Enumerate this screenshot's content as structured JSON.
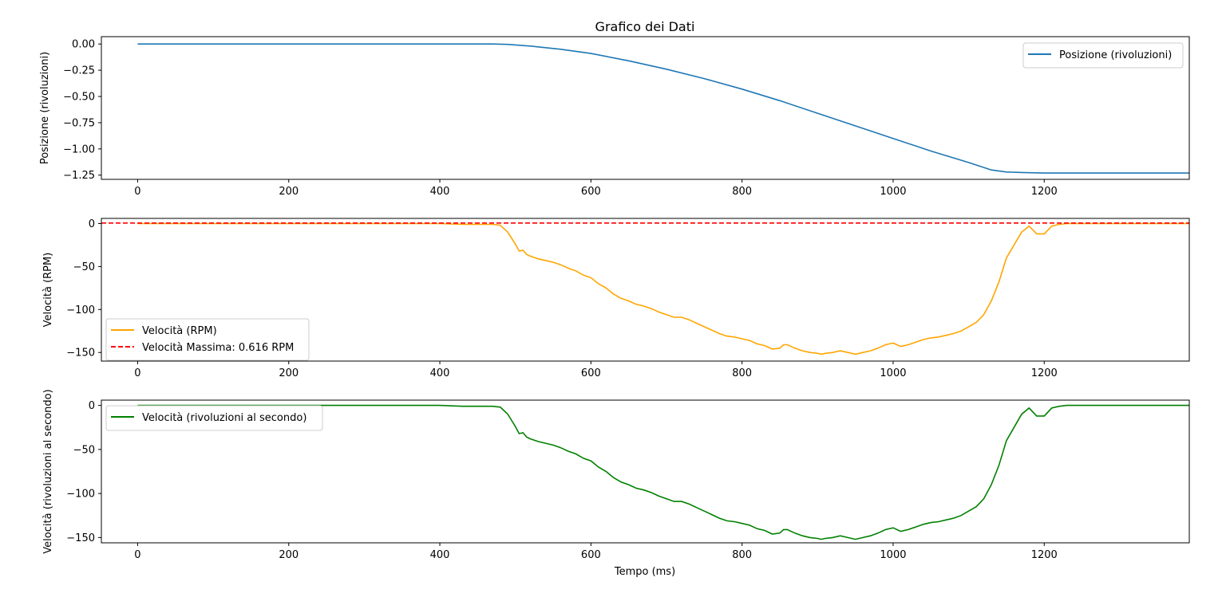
{
  "figure": {
    "title": "Grafico dei Dati",
    "xlabel": "Tempo (ms)"
  },
  "chart_data": [
    {
      "type": "line",
      "title": "Grafico dei Dati",
      "xlabel": "",
      "ylabel": "Posizione (rivoluzioni)",
      "xlim": [
        -48,
        1392
      ],
      "ylim": [
        -1.29,
        0.07
      ],
      "xticks": [
        0,
        200,
        400,
        600,
        800,
        1000,
        1200
      ],
      "yticks": [
        0.0,
        -0.25,
        -0.5,
        -0.75,
        -1.0,
        -1.25
      ],
      "ytick_labels": [
        "0.00",
        "−0.25",
        "−0.50",
        "−0.75",
        "−1.00",
        "−1.25"
      ],
      "grid": false,
      "legend": "top-right",
      "series": [
        {
          "name": "Posizione (rivoluzioni)",
          "color": "#1f77b4",
          "style": "solid",
          "x": [
            0,
            100,
            200,
            300,
            400,
            470,
            490,
            520,
            560,
            600,
            650,
            700,
            750,
            800,
            850,
            900,
            950,
            1000,
            1050,
            1100,
            1130,
            1150,
            1170,
            1200,
            1250,
            1300,
            1392
          ],
          "y": [
            0.0,
            0.0,
            0.0,
            0.0,
            0.0,
            0.0,
            -0.004,
            -0.02,
            -0.05,
            -0.09,
            -0.16,
            -0.24,
            -0.33,
            -0.43,
            -0.54,
            -0.66,
            -0.78,
            -0.9,
            -1.02,
            -1.13,
            -1.2,
            -1.22,
            -1.225,
            -1.23,
            -1.23,
            -1.23,
            -1.23
          ]
        }
      ]
    },
    {
      "type": "line",
      "xlabel": "",
      "ylabel": "Velocità (RPM)",
      "xlim": [
        -48,
        1392
      ],
      "ylim": [
        -160,
        6
      ],
      "xticks": [
        0,
        200,
        400,
        600,
        800,
        1000,
        1200
      ],
      "yticks": [
        0,
        -50,
        -100,
        -150
      ],
      "ytick_labels": [
        "0",
        "−50",
        "−100",
        "−150"
      ],
      "grid": false,
      "legend": "lower-left",
      "series": [
        {
          "name": "Velocità (RPM)",
          "color": "#ffa500",
          "style": "solid",
          "x": [
            0,
            100,
            200,
            300,
            400,
            430,
            450,
            470,
            480,
            490,
            500,
            505,
            510,
            515,
            520,
            530,
            540,
            550,
            560,
            570,
            580,
            590,
            600,
            610,
            620,
            630,
            640,
            650,
            660,
            670,
            680,
            690,
            700,
            710,
            720,
            730,
            740,
            750,
            760,
            770,
            780,
            790,
            800,
            810,
            820,
            830,
            840,
            850,
            855,
            860,
            870,
            880,
            890,
            900,
            905,
            910,
            920,
            930,
            940,
            950,
            960,
            970,
            980,
            990,
            1000,
            1010,
            1020,
            1030,
            1040,
            1050,
            1060,
            1070,
            1080,
            1090,
            1100,
            1110,
            1120,
            1130,
            1140,
            1150,
            1160,
            1170,
            1180,
            1190,
            1200,
            1210,
            1220,
            1230,
            1240,
            1260,
            1300,
            1392
          ],
          "y": [
            0,
            0,
            0,
            0,
            0,
            -1,
            -1,
            -1,
            -2,
            -10,
            -24,
            -32,
            -31,
            -36,
            -38,
            -41,
            -43,
            -45,
            -48,
            -52,
            -55,
            -60,
            -63,
            -70,
            -75,
            -82,
            -87,
            -90,
            -94,
            -96,
            -99,
            -103,
            -106,
            -109,
            -109,
            -112,
            -116,
            -120,
            -124,
            -128,
            -131,
            -132,
            -134,
            -136,
            -140,
            -142,
            -146,
            -145,
            -141,
            -141,
            -145,
            -148,
            -150,
            -151,
            -152,
            -151,
            -150,
            -148,
            -150,
            -152,
            -150,
            -148,
            -145,
            -141,
            -139,
            -143,
            -141,
            -138,
            -135,
            -133,
            -132,
            -130,
            -128,
            -125,
            -120,
            -115,
            -106,
            -90,
            -68,
            -40,
            -25,
            -10,
            -3,
            -12,
            -12,
            -3,
            -1,
            0,
            0,
            0,
            0,
            0
          ]
        },
        {
          "name": "Velocità Massima: 0.616 RPM",
          "color": "#ff0000",
          "style": "dashed",
          "x": [
            -48,
            1392
          ],
          "y": [
            0.616,
            0.616
          ]
        }
      ]
    },
    {
      "type": "line",
      "xlabel": "Tempo (ms)",
      "ylabel": "Velocità (rivoluzioni al secondo)",
      "xlim": [
        -48,
        1392
      ],
      "ylim": [
        -156,
        6
      ],
      "xticks": [
        0,
        200,
        400,
        600,
        800,
        1000,
        1200
      ],
      "yticks": [
        0,
        -50,
        -100,
        -150
      ],
      "ytick_labels": [
        "0",
        "−50",
        "−100",
        "−150"
      ],
      "grid": false,
      "legend": "top-left",
      "series": [
        {
          "name": "Velocità (rivoluzioni al secondo)",
          "color": "#008000",
          "style": "solid",
          "x": [
            0,
            100,
            200,
            300,
            400,
            430,
            450,
            470,
            480,
            490,
            500,
            505,
            510,
            515,
            520,
            530,
            540,
            550,
            560,
            570,
            580,
            590,
            600,
            610,
            620,
            630,
            640,
            650,
            660,
            670,
            680,
            690,
            700,
            710,
            720,
            730,
            740,
            750,
            760,
            770,
            780,
            790,
            800,
            810,
            820,
            830,
            840,
            850,
            855,
            860,
            870,
            880,
            890,
            900,
            905,
            910,
            920,
            930,
            940,
            950,
            960,
            970,
            980,
            990,
            1000,
            1010,
            1020,
            1030,
            1040,
            1050,
            1060,
            1070,
            1080,
            1090,
            1100,
            1110,
            1120,
            1130,
            1140,
            1150,
            1160,
            1170,
            1180,
            1190,
            1200,
            1210,
            1220,
            1230,
            1240,
            1260,
            1300,
            1392
          ],
          "y": [
            0,
            0,
            0,
            0,
            0,
            -1,
            -1,
            -1,
            -2,
            -10,
            -24,
            -32,
            -31,
            -36,
            -38,
            -41,
            -43,
            -45,
            -48,
            -52,
            -55,
            -60,
            -63,
            -70,
            -75,
            -82,
            -87,
            -90,
            -94,
            -96,
            -99,
            -103,
            -106,
            -109,
            -109,
            -112,
            -116,
            -120,
            -124,
            -128,
            -131,
            -132,
            -134,
            -136,
            -140,
            -142,
            -146,
            -145,
            -141,
            -141,
            -145,
            -148,
            -150,
            -151,
            -152,
            -151,
            -150,
            -148,
            -150,
            -152,
            -150,
            -148,
            -145,
            -141,
            -139,
            -143,
            -141,
            -138,
            -135,
            -133,
            -132,
            -130,
            -128,
            -125,
            -120,
            -115,
            -106,
            -90,
            -68,
            -40,
            -25,
            -10,
            -3,
            -12,
            -12,
            -3,
            -1,
            0,
            0,
            0,
            0,
            0
          ]
        }
      ]
    }
  ]
}
